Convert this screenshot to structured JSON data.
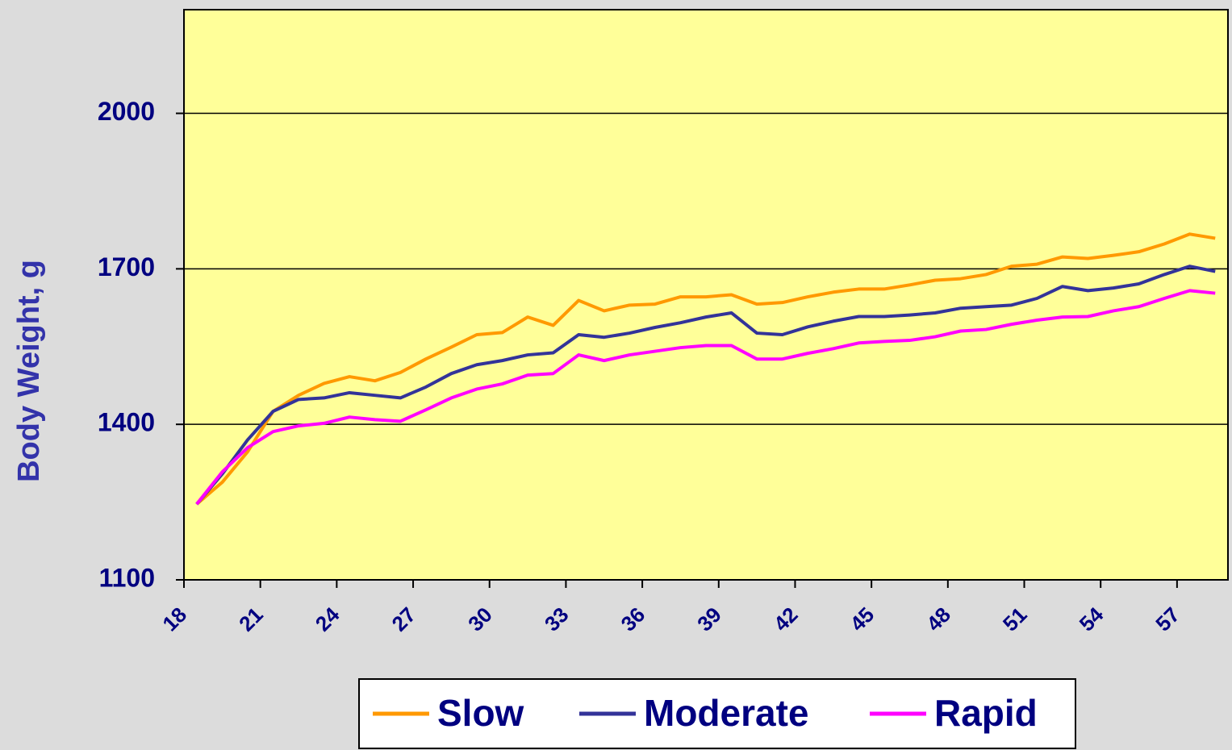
{
  "chart_data": {
    "type": "line",
    "y_label": "Body Weight, g",
    "x": [
      18.5,
      19.5,
      20.5,
      21.5,
      22.5,
      23.5,
      24.5,
      25.5,
      26.5,
      27.5,
      28.5,
      29.5,
      30.5,
      31.5,
      32.5,
      33.5,
      34.5,
      35.5,
      36.5,
      37.5,
      38.5,
      39.5,
      40.5,
      41.5,
      42.5,
      43.5,
      44.5,
      45.5,
      46.5,
      47.5,
      48.5,
      49.5,
      50.5,
      51.5,
      52.5,
      53.5,
      54.5,
      55.5,
      56.5,
      57.5,
      58.5
    ],
    "series": [
      {
        "name": "Slow",
        "color": "#ff9900",
        "values": [
          1246,
          1288,
          1347,
          1425,
          1456,
          1479,
          1492,
          1484,
          1500,
          1526,
          1549,
          1573,
          1577,
          1607,
          1591,
          1639,
          1619,
          1630,
          1632,
          1646,
          1646,
          1650,
          1632,
          1635,
          1646,
          1655,
          1661,
          1661,
          1669,
          1678,
          1681,
          1689,
          1705,
          1709,
          1723,
          1720,
          1726,
          1733,
          1748,
          1767,
          1759
        ]
      },
      {
        "name": "Moderate",
        "color": "#333399",
        "values": [
          1246,
          1304,
          1370,
          1425,
          1448,
          1451,
          1461,
          1456,
          1451,
          1472,
          1498,
          1515,
          1523,
          1534,
          1538,
          1573,
          1568,
          1576,
          1587,
          1596,
          1607,
          1615,
          1576,
          1573,
          1588,
          1599,
          1608,
          1608,
          1611,
          1615,
          1624,
          1627,
          1630,
          1643,
          1666,
          1658,
          1663,
          1671,
          1689,
          1705,
          1695
        ]
      },
      {
        "name": "Rapid",
        "color": "#ff00ff",
        "values": [
          1246,
          1308,
          1355,
          1386,
          1397,
          1402,
          1414,
          1409,
          1406,
          1428,
          1451,
          1468,
          1478,
          1495,
          1498,
          1534,
          1523,
          1534,
          1541,
          1548,
          1552,
          1552,
          1526,
          1526,
          1537,
          1546,
          1557,
          1560,
          1562,
          1569,
          1580,
          1583,
          1593,
          1601,
          1607,
          1608,
          1619,
          1627,
          1643,
          1658,
          1653
        ]
      }
    ],
    "xlim": [
      18,
      59
    ],
    "xticks": [
      18,
      21,
      24,
      27,
      30,
      33,
      36,
      39,
      42,
      45,
      48,
      51,
      54,
      57
    ],
    "ylim": [
      1100,
      2200
    ],
    "yticks": [
      1100,
      1400,
      1700,
      2000
    ],
    "grid": true,
    "legend": "bottom"
  }
}
